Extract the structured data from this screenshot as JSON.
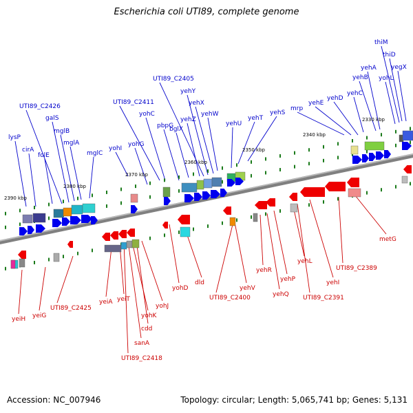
{
  "title": "Escherichia coli UTI89, complete genome",
  "accession_label": "Accession: NC_007946",
  "summary_label": "Topology: circular; Length: 5,065,741 bp; Genes: 5,131",
  "colors": {
    "label_forward": "#0000cc",
    "label_reverse": "#cc0000",
    "backbone": "#808080",
    "arrow_forward": "#0000ee",
    "arrow_reverse": "#ee0000",
    "tick": "#1a7a1a"
  },
  "kbp_ticks": [
    "2390 kbp",
    "2380 kbp",
    "2370 kbp",
    "2360 kbp",
    "2350 kbp",
    "2340 kbp",
    "2330 kbp"
  ],
  "forward_genes": [
    "lysP",
    "cirA",
    "folE",
    "UTI89_C2426",
    "galS",
    "mglB",
    "mglA",
    "mglC",
    "yohI",
    "yohG",
    "UTI89_C2411",
    "yohC",
    "pbpG",
    "bglX",
    "yehZ",
    "UTI89_C2405",
    "yehY",
    "yehX",
    "yehW",
    "yehU",
    "yehT",
    "yehS",
    "mrp",
    "yehE",
    "yehD",
    "yehC",
    "yehB",
    "yehA",
    "yohL",
    "thiM",
    "thiD",
    "yegX"
  ],
  "reverse_genes": [
    "yeiH",
    "yeiG",
    "UTI89_C2425",
    "yeiA",
    "yeiT",
    "yohK",
    "cdd",
    "sanA",
    "UTI89_C2418",
    "yohJ",
    "yohD",
    "dld",
    "UTI89_C2400",
    "yehV",
    "yehR",
    "yehQ",
    "yehP",
    "yehL",
    "UTI89_C2391",
    "yehI",
    "UTI89_C2389",
    "metG"
  ]
}
